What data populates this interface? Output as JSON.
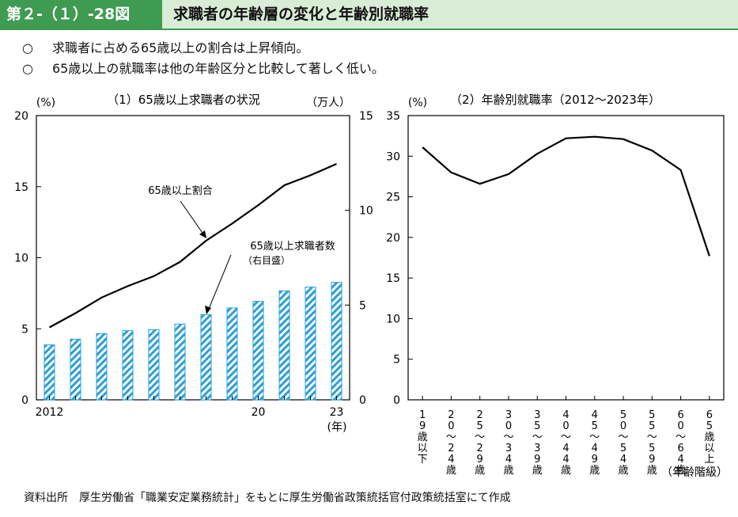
{
  "header": {
    "figure_number": "第２-（１）-28図",
    "title": "求職者の年齢層の変化と年齢別就職率"
  },
  "bullets": [
    {
      "mark": "○",
      "text": "求職者に占める65歳以上の割合は上昇傾向。"
    },
    {
      "mark": "○",
      "text": "65歳以上の就職率は他の年齢区分と比較して著しく低い。"
    }
  ],
  "source": "資料出所　厚生労働省「職業安定業務統計」をもとに厚生労働省政策統括官付政策統括室にて作成",
  "colors": {
    "header_green": "#3f9a52",
    "header_light": "#d9ecd6",
    "bar_fill": "#2a9fd6",
    "line": "#000000"
  },
  "chart_data": [
    {
      "type": "bar+line",
      "title": "（1）65歳以上求職者の状況",
      "left_axis_unit": "(%)",
      "right_axis_unit": "（万人）",
      "x": [
        2012,
        2013,
        2014,
        2015,
        2016,
        2017,
        2018,
        2019,
        2020,
        2021,
        2022,
        2023
      ],
      "x_tick_labels": [
        {
          "index": 0,
          "label": "2012"
        },
        {
          "index": 8,
          "label": "20"
        },
        {
          "index": 11,
          "label": "23"
        }
      ],
      "x_unit_label": "(年)",
      "left_ylim": [
        0,
        20
      ],
      "left_ticks": [
        "0",
        "5",
        "10",
        "15",
        "20"
      ],
      "right_ylim": [
        0,
        15
      ],
      "right_ticks": [
        "0",
        "5",
        "10",
        "15"
      ],
      "series": [
        {
          "name": "65歳以上割合",
          "axis": "left",
          "kind": "line",
          "values": [
            5.1,
            6.1,
            7.2,
            8.0,
            8.7,
            9.7,
            11.2,
            12.4,
            13.7,
            15.1,
            15.8,
            16.6
          ]
        },
        {
          "name": "65歳以上求職者数",
          "sub_label": "（右目盛）",
          "axis": "right",
          "kind": "bar",
          "values": [
            2.9,
            3.2,
            3.5,
            3.65,
            3.7,
            4.0,
            4.5,
            4.85,
            5.2,
            5.75,
            5.95,
            6.2
          ]
        }
      ]
    },
    {
      "type": "line",
      "title": "（2）年齢別就職率（2012～2023年）",
      "y_unit": "(%)",
      "ylim": [
        0,
        35
      ],
      "y_ticks": [
        "0",
        "5",
        "10",
        "15",
        "20",
        "25",
        "30",
        "35"
      ],
      "categories": [
        "19歳以下",
        "20～24歳",
        "25～29歳",
        "30～34歳",
        "35～39歳",
        "40～44歳",
        "45～49歳",
        "50～54歳",
        "55～59歳",
        "60～64歳",
        "65歳以上"
      ],
      "x_unit_label": "（年齢階級）",
      "values": [
        31.1,
        28.0,
        26.6,
        27.8,
        30.3,
        32.2,
        32.4,
        32.1,
        30.7,
        28.3,
        17.7
      ]
    }
  ]
}
